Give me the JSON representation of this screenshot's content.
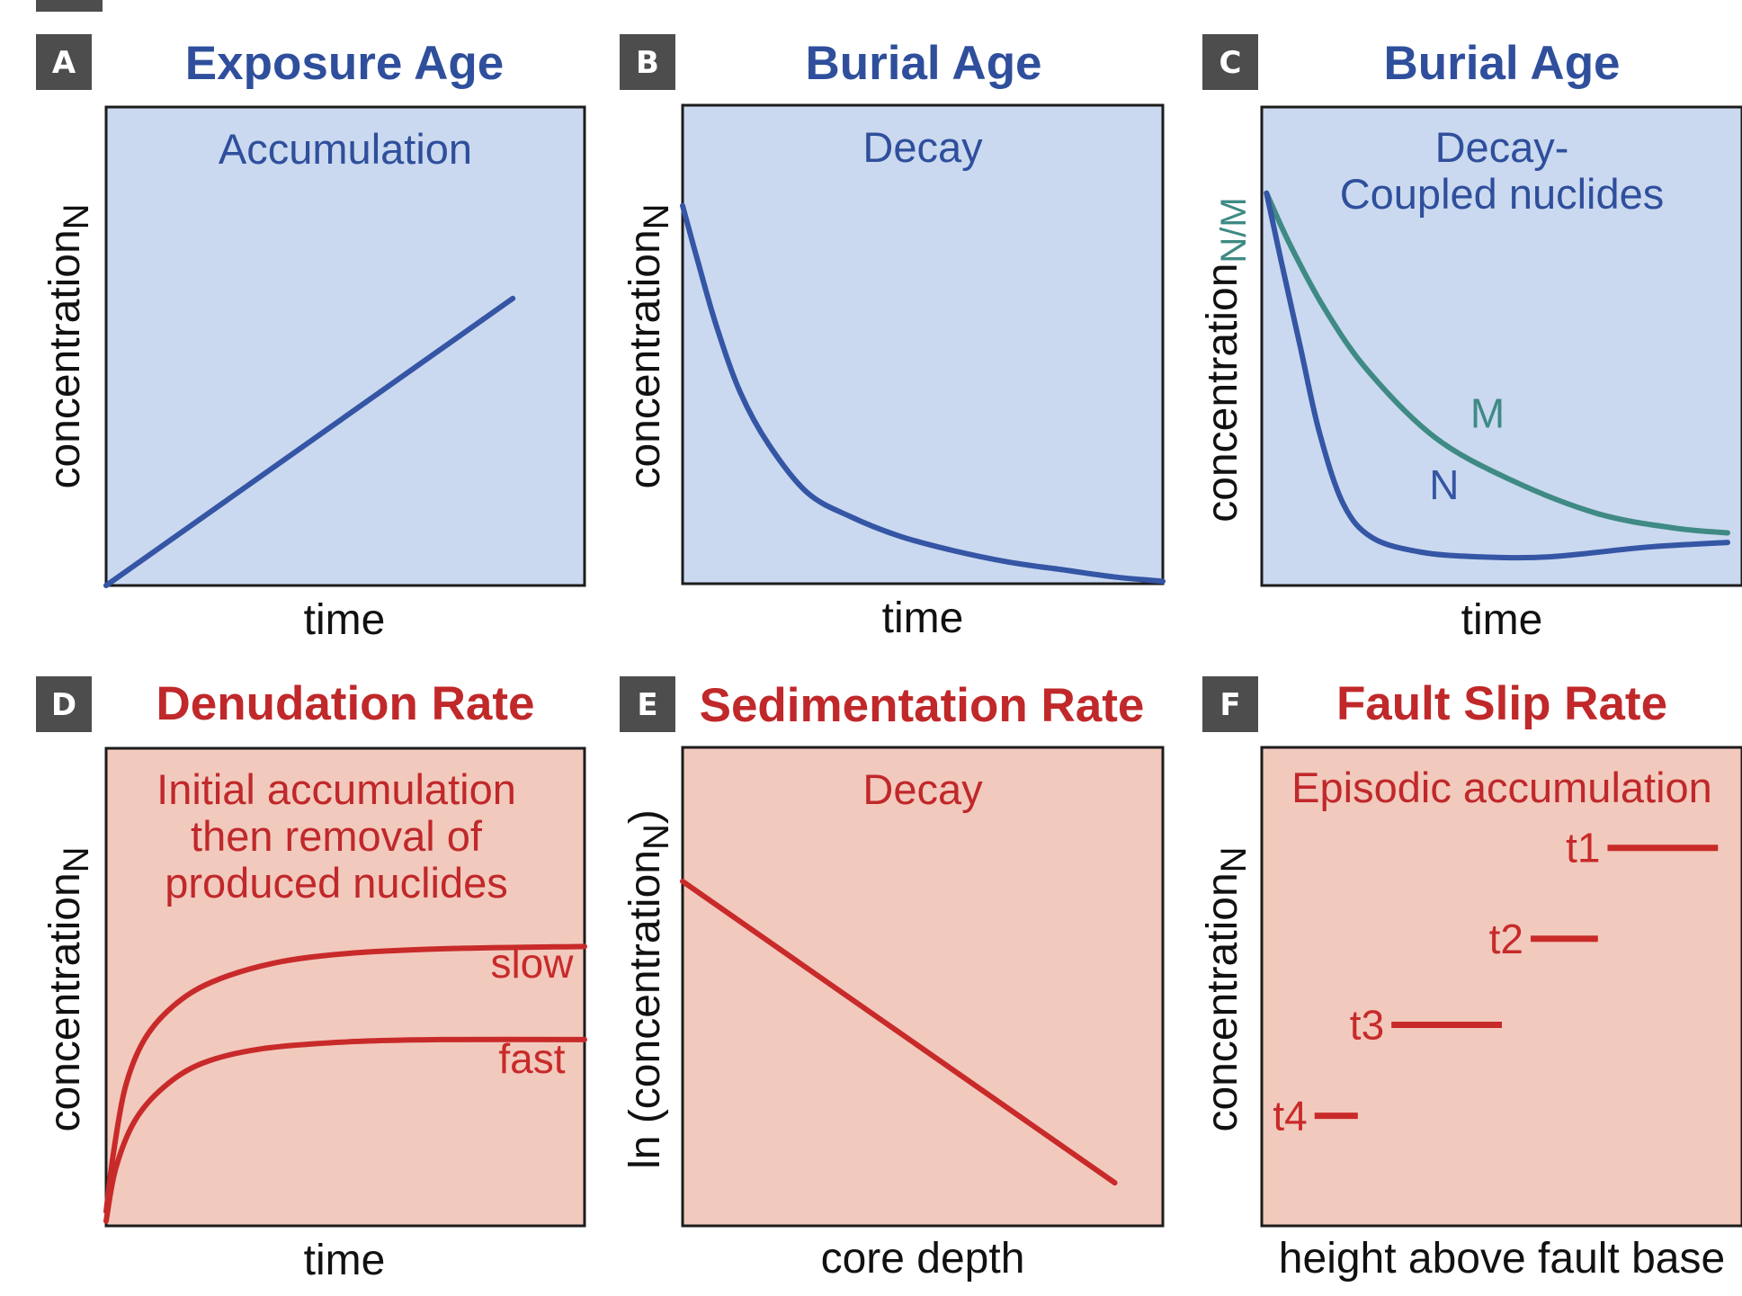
{
  "colors": {
    "blue_text": "#2f4f9c",
    "blue_line": "#3555a5",
    "blue_fill": "#cad9ef",
    "teal_line": "#3f8a84",
    "red_text": "#c0282a",
    "red_line": "#c82a2a",
    "red_fill": "#f2c9bd",
    "badge": "#4d4d4d",
    "frame": "#1c1c1c"
  },
  "panels": [
    {
      "badge": "A",
      "heading": "Exposure Age",
      "caption": [
        "Accumulation"
      ],
      "y_axis": "concentration",
      "y_sub": "N",
      "x_axis": "time",
      "curves": [
        {
          "label": "",
          "points": [
            [
              0,
              0
            ],
            [
              0.85,
              0.6
            ]
          ]
        }
      ]
    },
    {
      "badge": "B",
      "heading": "Burial Age",
      "caption": [
        "Decay"
      ],
      "y_axis": "concentration",
      "y_sub": "N",
      "x_axis": "time",
      "curves": [
        {
          "label": "",
          "points": [
            [
              0,
              0.79
            ],
            [
              0.03,
              0.68
            ],
            [
              0.07,
              0.54
            ],
            [
              0.12,
              0.4
            ],
            [
              0.18,
              0.29
            ],
            [
              0.26,
              0.19
            ],
            [
              0.35,
              0.14
            ],
            [
              0.45,
              0.1
            ],
            [
              0.56,
              0.07
            ],
            [
              0.68,
              0.045
            ],
            [
              0.8,
              0.028
            ],
            [
              0.9,
              0.014
            ],
            [
              1.0,
              0.005
            ]
          ]
        }
      ]
    },
    {
      "badge": "C",
      "heading": "Burial Age",
      "caption": [
        "Decay-",
        "Coupled nuclides"
      ],
      "y_axis": "concentration",
      "y_sub": "N/M",
      "x_axis": "time",
      "curves": [
        {
          "label": "M",
          "series": "teal",
          "points": [
            [
              0.01,
              0.82
            ],
            [
              0.06,
              0.71
            ],
            [
              0.13,
              0.58
            ],
            [
              0.22,
              0.45
            ],
            [
              0.36,
              0.31
            ],
            [
              0.52,
              0.22
            ],
            [
              0.7,
              0.15
            ],
            [
              0.86,
              0.12
            ],
            [
              0.97,
              0.11
            ]
          ]
        },
        {
          "label": "N",
          "series": "blue",
          "points": [
            [
              0.01,
              0.82
            ],
            [
              0.04,
              0.68
            ],
            [
              0.08,
              0.5
            ],
            [
              0.12,
              0.32
            ],
            [
              0.17,
              0.17
            ],
            [
              0.23,
              0.1
            ],
            [
              0.33,
              0.07
            ],
            [
              0.45,
              0.06
            ],
            [
              0.6,
              0.06
            ],
            [
              0.8,
              0.08
            ],
            [
              0.97,
              0.09
            ]
          ]
        }
      ]
    },
    {
      "badge": "D",
      "heading": "Denudation Rate",
      "caption": [
        "Initial accumulation",
        "then removal of",
        "produced nuclides"
      ],
      "y_axis": "concentration",
      "y_sub": "N",
      "x_axis": "time",
      "curves": [
        {
          "label": "slow",
          "points": [
            [
              0,
              0.03
            ],
            [
              0.015,
              0.15
            ],
            [
              0.04,
              0.29
            ],
            [
              0.08,
              0.39
            ],
            [
              0.14,
              0.46
            ],
            [
              0.22,
              0.51
            ],
            [
              0.35,
              0.55
            ],
            [
              0.5,
              0.57
            ],
            [
              0.7,
              0.58
            ],
            [
              1.0,
              0.585
            ]
          ]
        },
        {
          "label": "fast",
          "points": [
            [
              0,
              0.01
            ],
            [
              0.02,
              0.12
            ],
            [
              0.06,
              0.22
            ],
            [
              0.12,
              0.29
            ],
            [
              0.2,
              0.34
            ],
            [
              0.32,
              0.37
            ],
            [
              0.5,
              0.385
            ],
            [
              0.7,
              0.39
            ],
            [
              1.0,
              0.39
            ]
          ]
        }
      ]
    },
    {
      "badge": "E",
      "heading": "Sedimentation Rate",
      "caption": [
        "Decay"
      ],
      "y_axis": "ln (concentration",
      "y_sub": "N",
      "y_suffix": ")",
      "x_axis": "core depth",
      "curves": [
        {
          "label": "",
          "points": [
            [
              0,
              0.72
            ],
            [
              0.9,
              0.09
            ]
          ]
        }
      ]
    },
    {
      "badge": "F",
      "heading": "Fault Slip Rate",
      "caption": [
        "Episodic accumulation"
      ],
      "y_axis": "concentration",
      "y_sub": "N",
      "x_axis": "height above fault base",
      "segments": [
        {
          "label": "t1",
          "x": [
            0.72,
            0.95
          ],
          "y": 0.79
        },
        {
          "label": "t2",
          "x": [
            0.56,
            0.7
          ],
          "y": 0.6
        },
        {
          "label": "t3",
          "x": [
            0.27,
            0.5
          ],
          "y": 0.42
        },
        {
          "label": "t4",
          "x": [
            0.11,
            0.2
          ],
          "y": 0.23
        }
      ]
    }
  ]
}
